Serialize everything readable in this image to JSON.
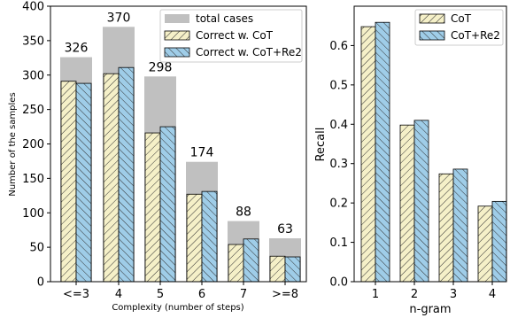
{
  "chart_data": [
    {
      "type": "bar",
      "categories": [
        "<=3",
        "4",
        "5",
        "6",
        "7",
        ">=8"
      ],
      "xlabel": "Complexity (number of steps)",
      "ylabel": "Number of the samples",
      "ylim": [
        0,
        400
      ],
      "yticks": [
        0,
        50,
        100,
        150,
        200,
        250,
        300,
        350,
        400
      ],
      "legend_position": "top-right",
      "series": [
        {
          "name": "total cases",
          "values": [
            326,
            370,
            298,
            174,
            88,
            63
          ],
          "color": "#c0c0c0",
          "style": "background"
        },
        {
          "name": "Correct w. CoT",
          "values": [
            291,
            302,
            216,
            127,
            54,
            37
          ],
          "color": "#f5f0c8",
          "style": "hatch"
        },
        {
          "name": "Correct w. CoT+Re2",
          "values": [
            288,
            311,
            225,
            131,
            62,
            36
          ],
          "color": "#9fcde8",
          "style": "hatch"
        }
      ],
      "data_labels": [
        "326",
        "370",
        "298",
        "174",
        "88",
        "63"
      ]
    },
    {
      "type": "bar",
      "categories": [
        "1",
        "2",
        "3",
        "4"
      ],
      "xlabel": "n-gram",
      "ylabel": "Recall",
      "ylim": [
        0,
        0.7
      ],
      "yticks": [
        "0.0",
        "0.1",
        "0.2",
        "0.3",
        "0.4",
        "0.5",
        "0.6"
      ],
      "legend_position": "top-right",
      "series": [
        {
          "name": "CoT",
          "values": [
            0.648,
            0.398,
            0.274,
            0.192
          ],
          "color": "#f5f0c8",
          "style": "hatch"
        },
        {
          "name": "CoT+Re2",
          "values": [
            0.659,
            0.41,
            0.286,
            0.204
          ],
          "color": "#9fcde8",
          "style": "hatch"
        }
      ]
    }
  ]
}
